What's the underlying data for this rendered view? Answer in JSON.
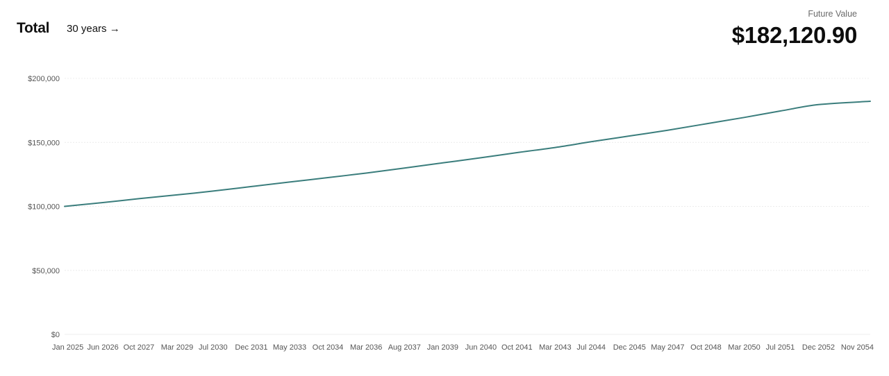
{
  "header": {
    "title": "Total",
    "range_label": "30 years →",
    "future_value_label": "Future Value",
    "future_value": "$182,120.90"
  },
  "colors": {
    "line": "#3a7d7c",
    "grid": "#ececec",
    "tick_text": "#555555"
  },
  "chart_data": {
    "type": "line",
    "title": "",
    "xlabel": "",
    "ylabel": "",
    "ylim": [
      0,
      200000
    ],
    "y_ticks": [
      {
        "value": 0,
        "label": "$0"
      },
      {
        "value": 50000,
        "label": "$50,000"
      },
      {
        "value": 100000,
        "label": "$100,000"
      },
      {
        "value": 150000,
        "label": "$150,000"
      },
      {
        "value": 200000,
        "label": "$200,000"
      }
    ],
    "x_range": [
      "2025-01",
      "2054-11"
    ],
    "x_ticks": [
      {
        "date": "2025-01",
        "label": "Jan 2025"
      },
      {
        "date": "2026-06",
        "label": "Jun 2026"
      },
      {
        "date": "2027-10",
        "label": "Oct 2027"
      },
      {
        "date": "2029-03",
        "label": "Mar 2029"
      },
      {
        "date": "2030-07",
        "label": "Jul 2030"
      },
      {
        "date": "2031-12",
        "label": "Dec 2031"
      },
      {
        "date": "2033-05",
        "label": "May 2033"
      },
      {
        "date": "2034-10",
        "label": "Oct 2034"
      },
      {
        "date": "2036-03",
        "label": "Mar 2036"
      },
      {
        "date": "2037-08",
        "label": "Aug 2037"
      },
      {
        "date": "2039-01",
        "label": "Jan 2039"
      },
      {
        "date": "2040-06",
        "label": "Jun 2040"
      },
      {
        "date": "2041-10",
        "label": "Oct 2041"
      },
      {
        "date": "2043-03",
        "label": "Mar 2043"
      },
      {
        "date": "2044-07",
        "label": "Jul 2044"
      },
      {
        "date": "2045-12",
        "label": "Dec 2045"
      },
      {
        "date": "2047-05",
        "label": "May 2047"
      },
      {
        "date": "2048-10",
        "label": "Oct 2048"
      },
      {
        "date": "2050-03",
        "label": "Mar 2050"
      },
      {
        "date": "2051-07",
        "label": "Jul 2051"
      },
      {
        "date": "2052-12",
        "label": "Dec 2052"
      },
      {
        "date": "2054-11",
        "label": "Nov 2054"
      }
    ],
    "grid": true,
    "legend": "none",
    "series": [
      {
        "x": [
          "2025-01",
          "2026-06",
          "2027-10",
          "2029-03",
          "2030-07",
          "2031-12",
          "2033-05",
          "2034-10",
          "2036-03",
          "2037-08",
          "2039-01",
          "2040-06",
          "2041-10",
          "2043-03",
          "2044-07",
          "2045-12",
          "2047-05",
          "2048-10",
          "2050-03",
          "2051-07",
          "2052-12",
          "2054-11"
        ],
        "values": [
          100000,
          103000,
          106000,
          109000,
          112000,
          115500,
          119000,
          122500,
          126000,
          130000,
          134000,
          138000,
          142000,
          146000,
          150500,
          155000,
          159500,
          164500,
          169500,
          174500,
          179500,
          182121
        ]
      }
    ]
  }
}
